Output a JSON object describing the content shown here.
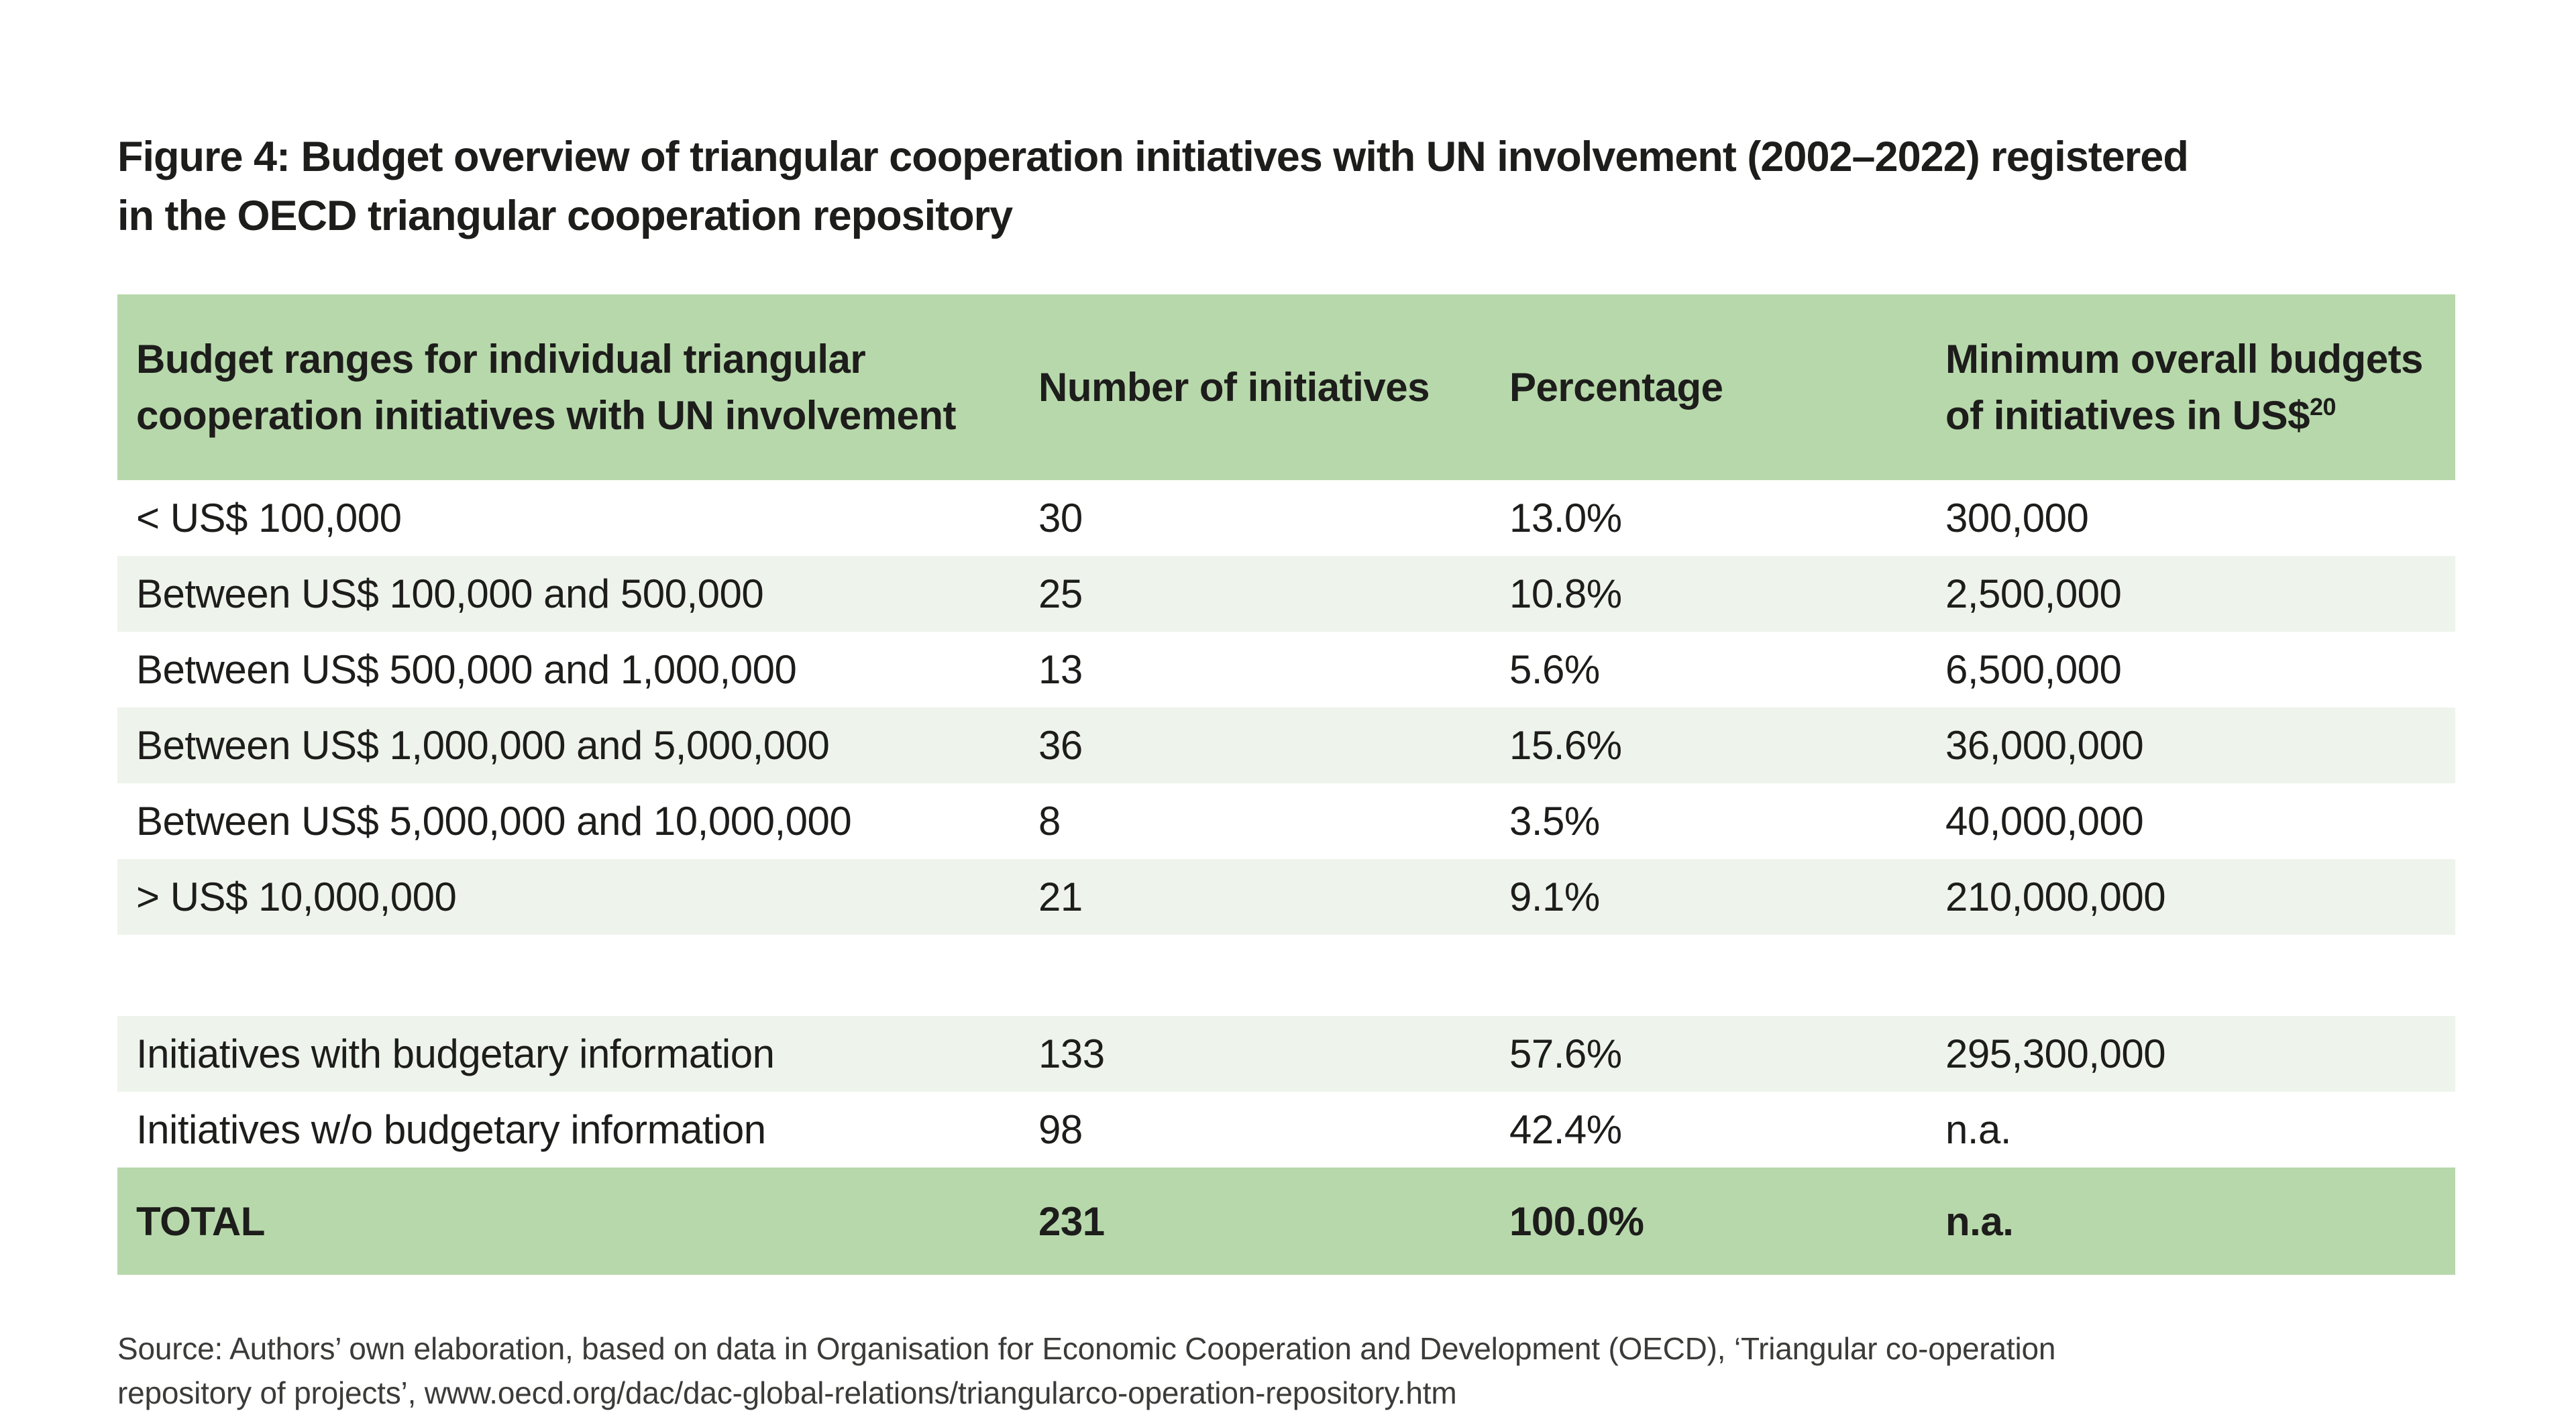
{
  "figure": {
    "title_line1": "Figure 4: Budget overview of triangular cooperation initiatives with UN involvement (2002–2022) registered",
    "title_line2": "in the OECD triangular cooperation repository"
  },
  "table": {
    "headers": {
      "col1": "Budget ranges for individual triangular cooperation initiatives with UN involvement",
      "col2": "Number of initiatives",
      "col3": "Percentage",
      "col4": "Minimum overall budgets of initiatives in US$",
      "col4_superscript": "20"
    },
    "budget_rows": [
      {
        "label": "< US$ 100,000",
        "initiatives": "30",
        "percentage": "13.0%",
        "min_budget": "300,000"
      },
      {
        "label": "Between US$ 100,000 and 500,000",
        "initiatives": "25",
        "percentage": "10.8%",
        "min_budget": "2,500,000"
      },
      {
        "label": "Between US$ 500,000 and 1,000,000",
        "initiatives": "13",
        "percentage": "5.6%",
        "min_budget": "6,500,000"
      },
      {
        "label": "Between US$ 1,000,000 and 5,000,000",
        "initiatives": "36",
        "percentage": "15.6%",
        "min_budget": "36,000,000"
      },
      {
        "label": "Between US$ 5,000,000 and 10,000,000",
        "initiatives": "8",
        "percentage": "3.5%",
        "min_budget": "40,000,000"
      },
      {
        "label": "> US$ 10,000,000",
        "initiatives": "21",
        "percentage": "9.1%",
        "min_budget": "210,000,000"
      }
    ],
    "summary_rows": [
      {
        "label": "Initiatives with budgetary information",
        "initiatives": "133",
        "percentage": "57.6%",
        "min_budget": "295,300,000"
      },
      {
        "label": "Initiatives w/o budgetary information",
        "initiatives": "98",
        "percentage": "42.4%",
        "min_budget": "n.a."
      }
    ],
    "total_row": {
      "label": "TOTAL",
      "initiatives": "231",
      "percentage": "100.0%",
      "min_budget": "n.a."
    }
  },
  "source": {
    "line1": "Source: Authors’ own elaboration, based on data in Organisation for Economic Cooperation and Development (OECD), ‘Triangular co-operation",
    "line2": "repository of projects’, www.oecd.org/dac/dac-global-relations/triangularco-operation-repository.htm"
  },
  "colors": {
    "header_green": "#b7d8ab",
    "row_light_green": "#eef4eb",
    "text_dark": "#1d1d1b",
    "source_gray": "#3b3b39"
  }
}
